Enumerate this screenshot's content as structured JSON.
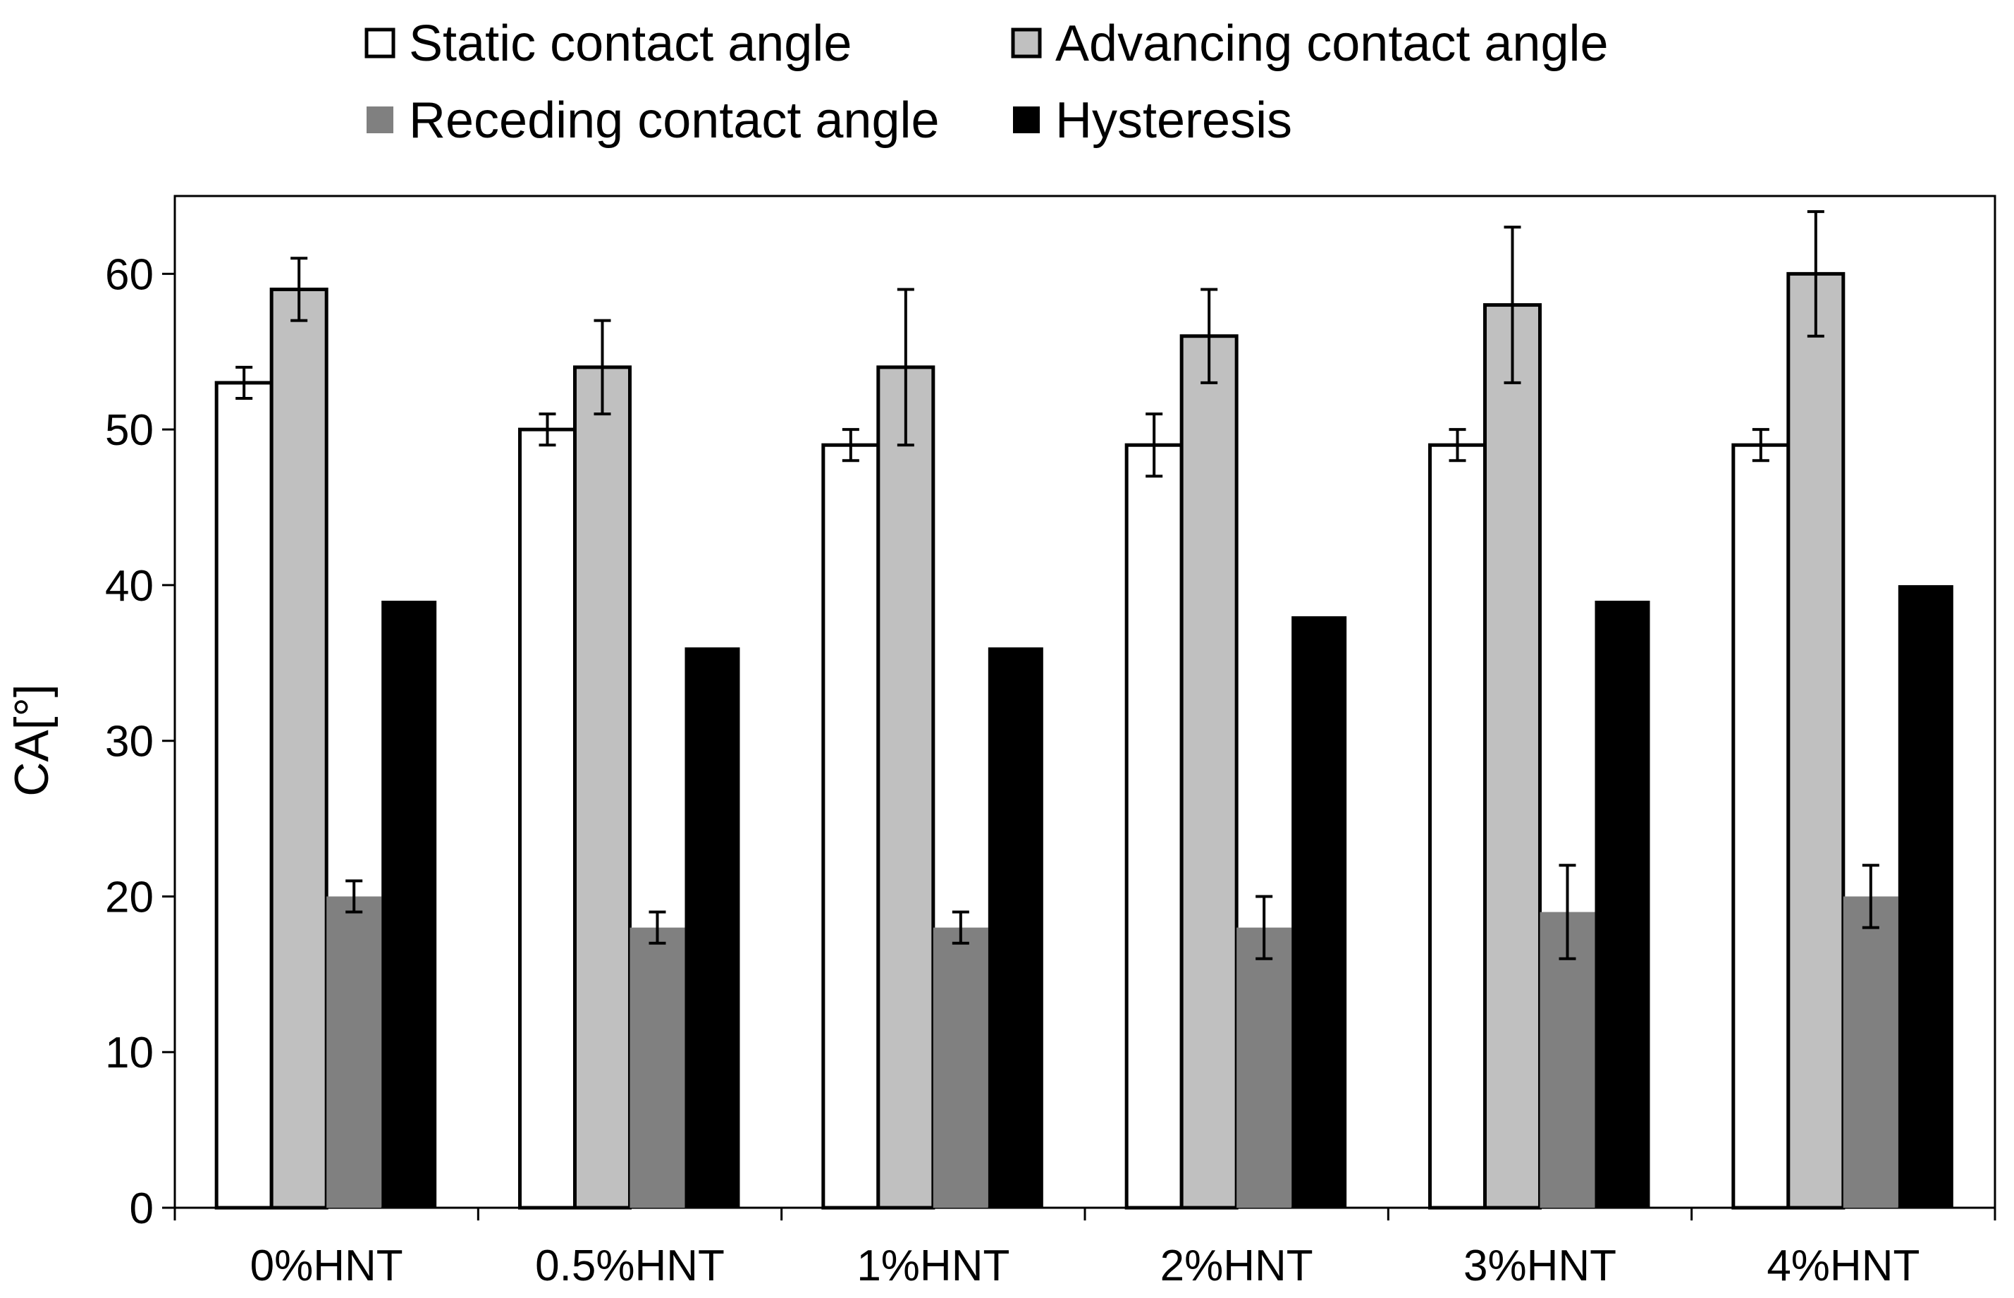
{
  "chart_data": {
    "type": "bar",
    "title": "",
    "xlabel": "",
    "ylabel": "CA[°]",
    "ylim": [
      0,
      65
    ],
    "yticks": [
      0,
      10,
      20,
      30,
      40,
      50,
      60
    ],
    "grid": false,
    "legend_position": "top",
    "categories": [
      "0%HNT",
      "0.5%HNT",
      "1%HNT",
      "2%HNT",
      "3%HNT",
      "4%HNT"
    ],
    "series": [
      {
        "name": "Static contact angle",
        "color": "#ffffff",
        "outlined": true,
        "values": [
          53,
          50,
          49,
          49,
          49,
          49
        ],
        "errors": [
          1,
          1,
          1,
          2,
          1,
          1
        ]
      },
      {
        "name": "Advancing contact angle",
        "color": "#c0c0c0",
        "outlined": true,
        "values": [
          59,
          54,
          54,
          56,
          58,
          60
        ],
        "errors": [
          2,
          3,
          5,
          3,
          5,
          4
        ]
      },
      {
        "name": "Receding contact angle",
        "color": "#808080",
        "outlined": false,
        "values": [
          20,
          18,
          18,
          18,
          19,
          20
        ],
        "errors": [
          1,
          1,
          1,
          2,
          3,
          2
        ]
      },
      {
        "name": "Hysteresis",
        "color": "#000000",
        "outlined": false,
        "values": [
          39,
          36,
          36,
          38,
          39,
          40
        ],
        "errors": [
          0,
          0,
          0,
          0,
          0,
          0
        ]
      }
    ]
  }
}
